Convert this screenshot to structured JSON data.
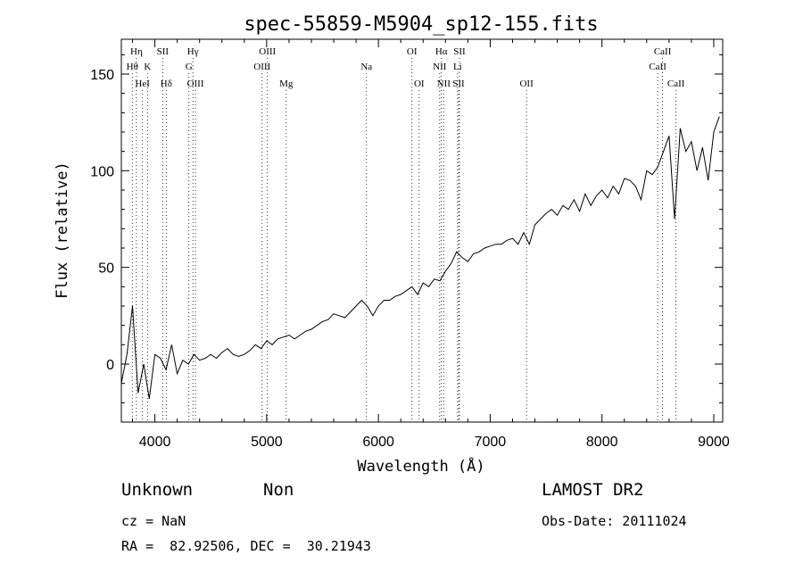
{
  "chart_data": {
    "type": "line",
    "title": "spec-55859-M5904_sp12-155.fits",
    "xlabel": "Wavelength (Å)",
    "ylabel": "Flux (relative)",
    "xlim": [
      3700,
      9080
    ],
    "ylim": [
      -30,
      168
    ],
    "xticks": [
      4000,
      5000,
      6000,
      7000,
      8000,
      9000
    ],
    "yticks": [
      0,
      50,
      100,
      150
    ],
    "grid": false,
    "series": [
      {
        "x": [
          3700,
          3750,
          3800,
          3850,
          3900,
          3950,
          4000,
          4050,
          4100,
          4150,
          4200,
          4250,
          4300,
          4350,
          4400,
          4450,
          4500,
          4550,
          4600,
          4650,
          4700,
          4750,
          4800,
          4850,
          4900,
          4950,
          5000,
          5050,
          5100,
          5150,
          5200,
          5250,
          5300,
          5350,
          5400,
          5450,
          5500,
          5550,
          5600,
          5650,
          5700,
          5750,
          5800,
          5850,
          5900,
          5950,
          6000,
          6050,
          6100,
          6150,
          6200,
          6250,
          6300,
          6350,
          6400,
          6450,
          6500,
          6550,
          6600,
          6650,
          6700,
          6750,
          6800,
          6850,
          6900,
          6950,
          7000,
          7050,
          7100,
          7150,
          7200,
          7250,
          7300,
          7350,
          7400,
          7450,
          7500,
          7550,
          7600,
          7650,
          7700,
          7750,
          7800,
          7850,
          7900,
          7950,
          8000,
          8050,
          8100,
          8150,
          8200,
          8250,
          8300,
          8350,
          8400,
          8450,
          8500,
          8550,
          8600,
          8650,
          8700,
          8750,
          8800,
          8850,
          8900,
          8950,
          9000,
          9050
        ],
        "y": [
          -10,
          5,
          30,
          -15,
          0,
          -18,
          5,
          3,
          -3,
          10,
          -5,
          2,
          0,
          5,
          2,
          3,
          5,
          3,
          6,
          8,
          5,
          4,
          5,
          7,
          10,
          8,
          12,
          10,
          13,
          14,
          15,
          13,
          15,
          17,
          18,
          20,
          22,
          23,
          26,
          25,
          24,
          27,
          30,
          33,
          30,
          25,
          30,
          33,
          33,
          35,
          36,
          38,
          40,
          36,
          42,
          40,
          44,
          43,
          48,
          52,
          58,
          55,
          53,
          57,
          58,
          60,
          61,
          62,
          62,
          64,
          65,
          62,
          68,
          62,
          72,
          75,
          78,
          80,
          77,
          82,
          80,
          85,
          79,
          88,
          82,
          87,
          90,
          86,
          92,
          88,
          96,
          95,
          92,
          85,
          100,
          98,
          102,
          110,
          118,
          75,
          122,
          110,
          115,
          100,
          112,
          95,
          120,
          128
        ]
      }
    ],
    "line_markers": [
      {
        "label": "Hη",
        "wavelength": 3835,
        "row": 0
      },
      {
        "label": "SII",
        "wavelength": 4070,
        "row": 0
      },
      {
        "label": "Hγ",
        "wavelength": 4340,
        "row": 0
      },
      {
        "label": "OIII",
        "wavelength": 5007,
        "row": 0
      },
      {
        "label": "OI",
        "wavelength": 6300,
        "row": 0
      },
      {
        "label": "Hα",
        "wavelength": 6563,
        "row": 0
      },
      {
        "label": "SII",
        "wavelength": 6725,
        "row": 0
      },
      {
        "label": "CaII",
        "wavelength": 8542,
        "row": 0
      },
      {
        "label": "Hθ",
        "wavelength": 3798,
        "row": 1
      },
      {
        "label": "K",
        "wavelength": 3934,
        "row": 1
      },
      {
        "label": "G",
        "wavelength": 4304,
        "row": 1
      },
      {
        "label": "OIII",
        "wavelength": 4959,
        "row": 1
      },
      {
        "label": "Na",
        "wavelength": 5893,
        "row": 1
      },
      {
        "label": "NII",
        "wavelength": 6548,
        "row": 1
      },
      {
        "label": "Li",
        "wavelength": 6708,
        "row": 1
      },
      {
        "label": "CaII",
        "wavelength": 8498,
        "row": 1
      },
      {
        "label": "HeI",
        "wavelength": 3889,
        "row": 2
      },
      {
        "label": "Hδ",
        "wavelength": 4102,
        "row": 2
      },
      {
        "label": "OIII",
        "wavelength": 4363,
        "row": 2
      },
      {
        "label": "Mg",
        "wavelength": 5175,
        "row": 2
      },
      {
        "label": "OI",
        "wavelength": 6364,
        "row": 2
      },
      {
        "label": "NII",
        "wavelength": 6584,
        "row": 2
      },
      {
        "label": "SII",
        "wavelength": 6717,
        "row": 2
      },
      {
        "label": "OII",
        "wavelength": 7325,
        "row": 2
      },
      {
        "label": "CaII",
        "wavelength": 8662,
        "row": 2
      }
    ]
  },
  "footer": {
    "class_label": "Unknown",
    "subclass_label": "Non",
    "survey": "LAMOST DR2",
    "cz": "cz = NaN",
    "obs_date": "Obs-Date: 20111024",
    "coords": "RA =  82.92506, DEC =  30.21943"
  }
}
